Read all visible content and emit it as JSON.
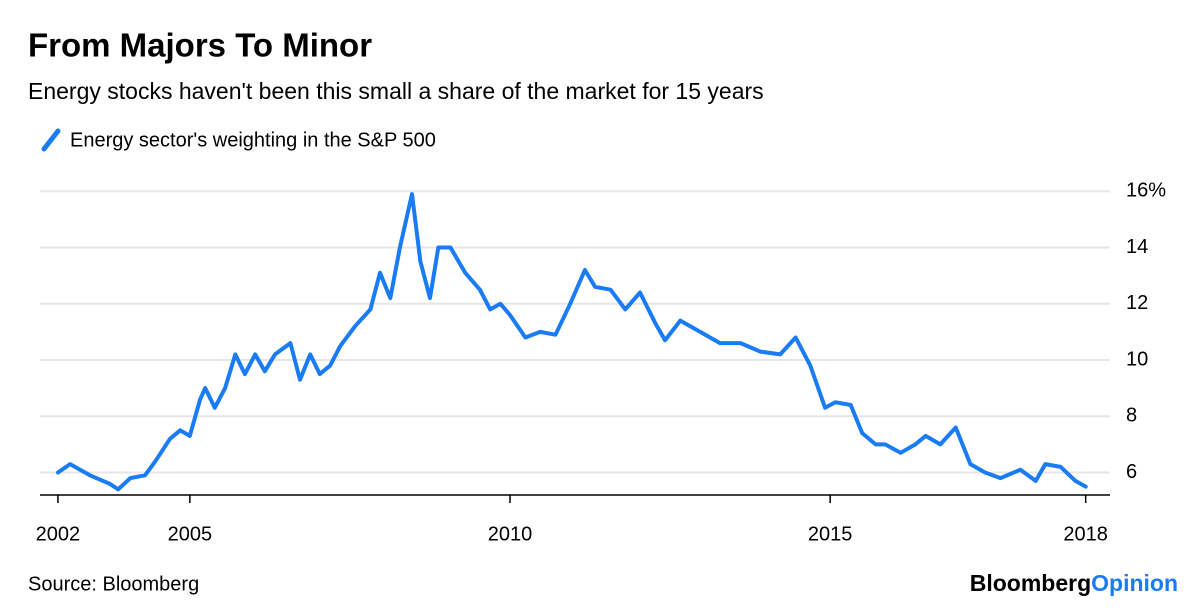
{
  "chart_data": {
    "type": "line",
    "title": "From Majors To Minor",
    "subtitle": "Energy stocks haven't been this small a share of the market for 15 years",
    "source": "Source: Bloomberg",
    "brand": "Bloomberg",
    "brand_accent": "Opinion",
    "x": [
      2002.94,
      2003.13,
      2003.44,
      2003.75,
      2003.88,
      2004.07,
      2004.3,
      2004.46,
      2004.69,
      2004.85,
      2005.0,
      2005.16,
      2005.24,
      2005.39,
      2005.55,
      2005.71,
      2005.86,
      2006.02,
      2006.17,
      2006.33,
      2006.57,
      2006.72,
      2006.88,
      2007.03,
      2007.19,
      2007.35,
      2007.58,
      2007.82,
      2007.97,
      2008.13,
      2008.28,
      2008.47,
      2008.6,
      2008.75,
      2008.88,
      2009.07,
      2009.3,
      2009.53,
      2009.69,
      2009.85,
      2010.0,
      2010.24,
      2010.47,
      2010.71,
      2010.94,
      2011.17,
      2011.33,
      2011.57,
      2011.8,
      2012.03,
      2012.27,
      2012.42,
      2012.66,
      2012.97,
      2013.28,
      2013.6,
      2013.91,
      2014.22,
      2014.46,
      2014.69,
      2014.92,
      2015.08,
      2015.32,
      2015.5,
      2015.71,
      2015.86,
      2016.1,
      2016.33,
      2016.49,
      2016.72,
      2016.96,
      2017.19,
      2017.42,
      2017.66,
      2017.97,
      2018.21,
      2018.36,
      2018.6,
      2018.83,
      2018.99
    ],
    "series": [
      {
        "name": "Energy sector's weighting in the S&P 500",
        "color": "#1a7cf5",
        "values": [
          6.0,
          6.3,
          5.9,
          5.6,
          5.4,
          5.8,
          5.9,
          6.4,
          7.2,
          7.5,
          7.3,
          8.6,
          9.0,
          8.3,
          9.0,
          10.2,
          9.5,
          10.2,
          9.6,
          10.2,
          10.6,
          9.3,
          10.2,
          9.5,
          9.8,
          10.5,
          11.2,
          11.8,
          13.1,
          12.2,
          14.0,
          15.9,
          13.5,
          12.2,
          14.0,
          14.0,
          13.1,
          12.5,
          11.8,
          12.0,
          11.6,
          10.8,
          11.0,
          10.9,
          12.0,
          13.2,
          12.6,
          12.5,
          11.8,
          12.4,
          11.3,
          10.7,
          11.4,
          11.0,
          10.6,
          10.6,
          10.3,
          10.2,
          10.8,
          9.8,
          8.3,
          8.5,
          8.4,
          7.4,
          7.0,
          7.0,
          6.7,
          7.0,
          7.3,
          7.0,
          7.6,
          6.3,
          6.0,
          5.8,
          6.1,
          5.7,
          6.3,
          6.2,
          5.7,
          5.5
        ]
      }
    ],
    "xlim": [
      2002.66,
      2019.37
    ],
    "xticks": [
      {
        "value": 2002.94,
        "label": "2002"
      },
      2005,
      2010,
      2015,
      {
        "value": 2018.99,
        "label": "2018"
      }
    ],
    "ylim": [
      5.2,
      16.4
    ],
    "yticks": [
      6,
      8,
      10,
      12,
      14,
      {
        "value": 16,
        "label": "16%"
      }
    ],
    "grid": true
  }
}
